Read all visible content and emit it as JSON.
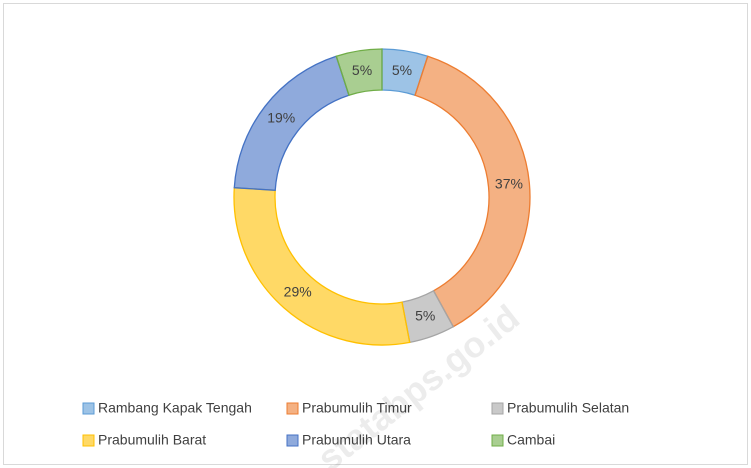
{
  "chart_data": {
    "type": "pie",
    "categories": [
      "Rambang Kapak Tengah",
      "Prabumulih Timur",
      "Prabumulih Selatan",
      "Prabumulih Barat",
      "Prabumulih Utara",
      "Cambai"
    ],
    "values": [
      5,
      37,
      5,
      29,
      19,
      5
    ],
    "value_labels": [
      "5%",
      "37%",
      "5%",
      "29%",
      "19%",
      "5%"
    ],
    "colors": [
      "#5b9bd5",
      "#ed7d31",
      "#a5a5a5",
      "#ffc000",
      "#4472c4",
      "#70ad47"
    ],
    "donut": true,
    "legend": "bottom",
    "watermark": "statabps.go.id"
  }
}
